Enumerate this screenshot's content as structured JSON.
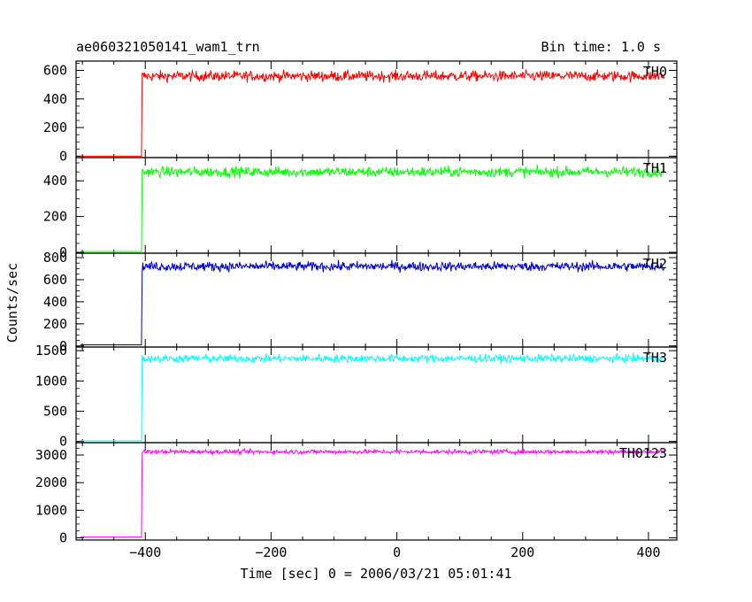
{
  "chart_data": {
    "type": "line",
    "title": "ae060321050141_wam1_trn",
    "subtitle": "Bin time: 1.0 s",
    "xlabel": "Time [sec] 0 = 2006/03/21 05:01:41",
    "ylabel": "Counts/sec",
    "xlim": [
      -510,
      445
    ],
    "x_ticks": [
      -400,
      -200,
      0,
      200,
      400
    ],
    "x_tick_labels": [
      "−400",
      "−200",
      "0",
      "200",
      "400"
    ],
    "grid": false,
    "panels": [
      {
        "name": "TH0",
        "color": "#ff0000",
        "ylim": [
          -10,
          665
        ],
        "y_ticks": [
          0,
          200,
          400,
          600
        ],
        "y_tick_labels": [
          "0",
          "200",
          "400",
          "600"
        ],
        "series": {
          "x_start": -503,
          "x_step": 1.0,
          "x_end": 425,
          "onset": -405,
          "baseline": 0,
          "level": 560,
          "noise": 26,
          "spike_max": 650
        }
      },
      {
        "name": "TH1",
        "color": "#00ff00",
        "ylim": [
          -5,
          530
        ],
        "y_ticks": [
          0,
          200,
          400
        ],
        "y_tick_labels": [
          "0",
          "200",
          "400"
        ],
        "series": {
          "x_start": -503,
          "x_step": 1.0,
          "x_end": 425,
          "onset": -405,
          "baseline": 5,
          "level": 450,
          "noise": 20,
          "spike_max": 500
        }
      },
      {
        "name": "TH2",
        "color": "#0000cc",
        "ylim": [
          -10,
          840
        ],
        "y_ticks": [
          0,
          200,
          400,
          600,
          800
        ],
        "y_tick_labels": [
          "0",
          "200",
          "400",
          "600",
          "800"
        ],
        "series": {
          "x_start": -503,
          "x_step": 1.0,
          "x_end": 425,
          "onset": -405,
          "baseline": 10,
          "level": 720,
          "noise": 30,
          "spike_max": 800
        }
      },
      {
        "name": "TH3",
        "color": "#00ffff",
        "ylim": [
          -20,
          1560
        ],
        "y_ticks": [
          0,
          500,
          1000,
          1500
        ],
        "y_tick_labels": [
          "0",
          "500",
          "1000",
          "1500"
        ],
        "series": {
          "x_start": -503,
          "x_step": 1.0,
          "x_end": 425,
          "onset": -405,
          "baseline": 10,
          "level": 1370,
          "noise": 45,
          "spike_max": 1500
        }
      },
      {
        "name": "TH0123",
        "color": "#ff00ff",
        "ylim": [
          -80,
          3450
        ],
        "y_ticks": [
          0,
          1000,
          2000,
          3000
        ],
        "y_tick_labels": [
          "0",
          "1000",
          "2000",
          "3000"
        ],
        "series": {
          "x_start": -503,
          "x_step": 1.0,
          "x_end": 425,
          "onset": -405,
          "baseline": 30,
          "level": 3120,
          "noise": 55,
          "spike_max": 3300
        }
      }
    ]
  }
}
